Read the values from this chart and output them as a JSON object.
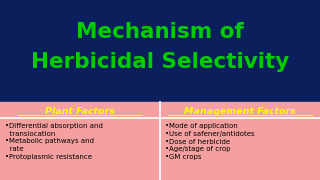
{
  "title_line1": "Mechanism of",
  "title_line2": "Herbicidal Selectivity",
  "title_color": "#00cc00",
  "title_bg": "#0a1f5c",
  "table_bg": "#f4a0a0",
  "col1_header": "Plant Factors",
  "col2_header": "Management Factors",
  "header_color": "#ffff00",
  "text_color": "#000000",
  "divider_color": "#ffffff",
  "col1_text": "•Differential absorption and\n  translocation\n•Metabolic pathways and\n  rate\n•Protoplasmic resistance",
  "col2_text": "•Mode of application\n•Use of safener/antidotes\n•Dose of herbicide\n•Age/stage of crop\n•GM crops"
}
